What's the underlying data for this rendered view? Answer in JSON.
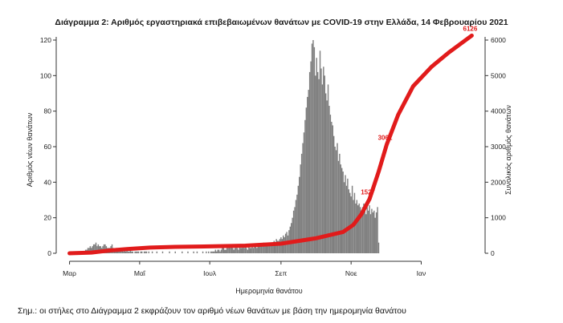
{
  "title": "Διάγραμμα 2: Αριθμός εργαστηριακά επιβεβαιωμένων θανάτων με COVID-19 στην Ελλάδα, 14 Φεβρουαρίου 2021",
  "note": "Σημ.: οι στήλες στο Διάγραμμα 2 εκφράζουν τον αριθμό νέων θανάτων με βάση την ημερομηνία θανάτου",
  "chart_data": {
    "type": "bar",
    "xlabel": "Ημερομηνία θανάτου",
    "ylabel": "Αριθμός νέων θανάτων",
    "y2label": "Συνολικός αριθμός θανάτων",
    "x_ticks": [
      "Μαρ",
      "Μαΐ",
      "Ιουλ",
      "Σεπ",
      "Νοε",
      "Ιαν"
    ],
    "ylim": [
      0,
      120
    ],
    "y_ticks": [
      0,
      20,
      40,
      60,
      80,
      100,
      120
    ],
    "y2lim": [
      0,
      6000
    ],
    "y2_ticks": [
      0,
      1000,
      2000,
      3000,
      4000,
      5000,
      6000
    ],
    "bar_color": "#7f7f7f",
    "line_color": "#e11b1b",
    "series": [
      {
        "name": "Αριθμός νέων θανάτων",
        "type": "bar",
        "x_start": "2020-03-01",
        "values": [
          0,
          0,
          0,
          0,
          0,
          0,
          0,
          0,
          1,
          0,
          1,
          1,
          1,
          1,
          2,
          2,
          3,
          3,
          4,
          3,
          4,
          5,
          5,
          6,
          4,
          5,
          4,
          4,
          3,
          4,
          5,
          5,
          4,
          3,
          3,
          3,
          4,
          5,
          3,
          2,
          2,
          3,
          2,
          2,
          3,
          2,
          2,
          1,
          2,
          1,
          2,
          1,
          1,
          2,
          1,
          1,
          0,
          1,
          1,
          1,
          1,
          0,
          1,
          1,
          0,
          1,
          1,
          1,
          0,
          1,
          0,
          0,
          1,
          0,
          0,
          0,
          1,
          0,
          0,
          0,
          0,
          1,
          0,
          0,
          0,
          0,
          0,
          1,
          0,
          0,
          0,
          0,
          1,
          0,
          0,
          0,
          0,
          0,
          1,
          0,
          0,
          0,
          0,
          1,
          0,
          0,
          0,
          0,
          1,
          0,
          0,
          1,
          0,
          0,
          0,
          0,
          1,
          0,
          0,
          1,
          0,
          1,
          0,
          1,
          1,
          1,
          1,
          2,
          1,
          2,
          2,
          1,
          2,
          3,
          3,
          2,
          2,
          3,
          3,
          4,
          3,
          4,
          3,
          2,
          3,
          4,
          3,
          2,
          4,
          3,
          3,
          4,
          3,
          4,
          3,
          2,
          4,
          3,
          3,
          4,
          3,
          5,
          4,
          3,
          5,
          4,
          5,
          4,
          5,
          6,
          5,
          4,
          6,
          5,
          6,
          5,
          6,
          5,
          7,
          6,
          8,
          7,
          7,
          8,
          9,
          8,
          10,
          9,
          11,
          12,
          10,
          13,
          15,
          17,
          20,
          24,
          26,
          30,
          33,
          38,
          43,
          50,
          56,
          62,
          68,
          75,
          82,
          88,
          92,
          102,
          108,
          118,
          120,
          116,
          100,
          110,
          102,
          98,
          114,
          104,
          95,
          105,
          100,
          90,
          86,
          95,
          83,
          78,
          74,
          72,
          66,
          60,
          58,
          62,
          52,
          56,
          50,
          48,
          46,
          40,
          44,
          38,
          42,
          36,
          34,
          32,
          38,
          30,
          34,
          28,
          30,
          27,
          28,
          26,
          24,
          26,
          28,
          25,
          22,
          26,
          24,
          27,
          22,
          25,
          23,
          24,
          20,
          23,
          26,
          6
        ]
      },
      {
        "name": "Συνολικός αριθμός θανάτων",
        "type": "line",
        "points": [
          {
            "x": "2020-03-01",
            "y": 0
          },
          {
            "x": "2020-03-20",
            "y": 20
          },
          {
            "x": "2020-04-05",
            "y": 80
          },
          {
            "x": "2020-04-20",
            "y": 120
          },
          {
            "x": "2020-05-10",
            "y": 160
          },
          {
            "x": "2020-06-01",
            "y": 180
          },
          {
            "x": "2020-07-01",
            "y": 195
          },
          {
            "x": "2020-08-01",
            "y": 215
          },
          {
            "x": "2020-09-01",
            "y": 270
          },
          {
            "x": "2020-10-01",
            "y": 420
          },
          {
            "x": "2020-10-25",
            "y": 600
          },
          {
            "x": "2020-11-03",
            "y": 800
          },
          {
            "x": "2020-11-10",
            "y": 1100
          },
          {
            "x": "2020-11-17",
            "y": 1527
          },
          {
            "x": "2020-11-25",
            "y": 2300
          },
          {
            "x": "2020-12-02",
            "y": 3061
          },
          {
            "x": "2020-12-12",
            "y": 3900
          },
          {
            "x": "2020-12-25",
            "y": 4700
          },
          {
            "x": "2021-01-10",
            "y": 5250
          },
          {
            "x": "2021-01-25",
            "y": 5650
          },
          {
            "x": "2021-02-14",
            "y": 6126
          }
        ]
      }
    ],
    "annotations": [
      {
        "x": "2020-11-17",
        "y": 1527,
        "label": "1527"
      },
      {
        "x": "2020-12-02",
        "y": 3061,
        "label": "3061"
      },
      {
        "x": "2021-02-14",
        "y": 6126,
        "label": "6126"
      }
    ]
  }
}
